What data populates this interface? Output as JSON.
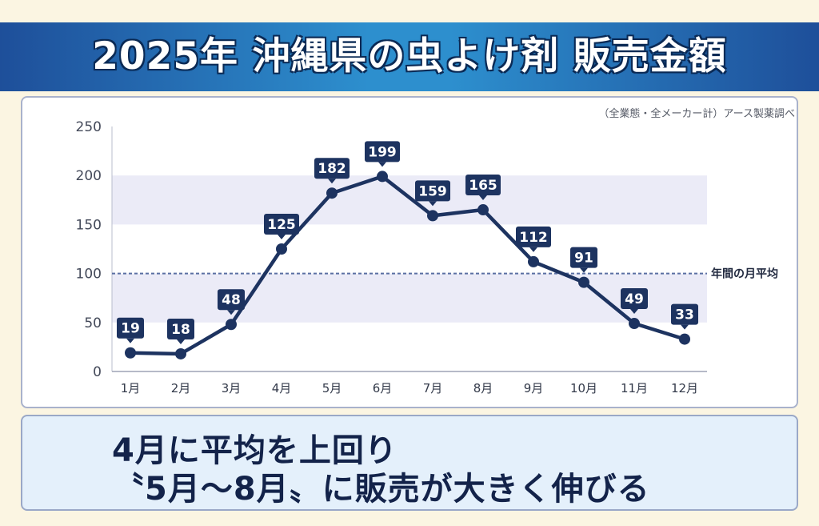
{
  "title": "2025年 沖縄県の虫よけ剤 販売金額",
  "source_note": "（全業態・全メーカー計）アース製薬調べ",
  "summary": {
    "line1": "4月に平均を上回り",
    "line2": "〝5月〜8月〟に販売が大きく伸びる"
  },
  "colors": {
    "line": "#1d3360",
    "label_bg": "#1d3360",
    "band": "#ebebf7",
    "avg_line": "#5a6fa3",
    "title_bg": "#2d8fce"
  },
  "chart_data": {
    "type": "line",
    "categories": [
      "1月",
      "2月",
      "3月",
      "4月",
      "5月",
      "6月",
      "7月",
      "8月",
      "9月",
      "10月",
      "11月",
      "12月"
    ],
    "values": [
      19,
      18,
      48,
      125,
      182,
      199,
      159,
      165,
      112,
      91,
      49,
      33
    ],
    "value_labels": [
      "19",
      "18",
      "48",
      "125",
      "182",
      "199",
      "159",
      "165",
      "112",
      "91",
      "49",
      "33"
    ],
    "ylim": [
      0,
      250
    ],
    "yticks": [
      0,
      50,
      100,
      150,
      200,
      250
    ],
    "ytick_labels": [
      "0",
      "50",
      "100",
      "150",
      "200",
      "250"
    ],
    "reference_line": {
      "value": 100,
      "label": "年間の月平均",
      "style": "dashed"
    },
    "grid": "alternating horizontal bands",
    "xlabel": "",
    "ylabel": ""
  }
}
